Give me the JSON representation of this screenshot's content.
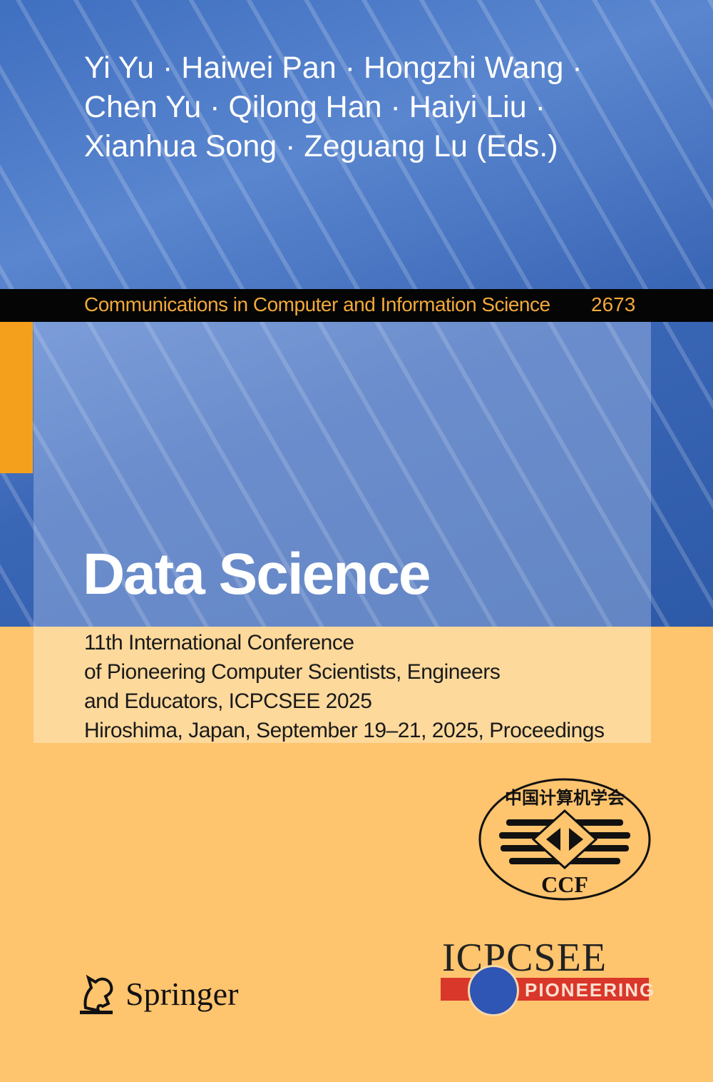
{
  "authors": {
    "lines": [
      "Yi Yu · Haiwei Pan · Hongzhi Wang ·",
      "Chen Yu · Qilong Han · Haiyi Liu ·",
      "Xianhua Song · Zeguang Lu (Eds.)"
    ]
  },
  "series": {
    "name": "Communications in Computer and Information Science",
    "volume": "2673"
  },
  "title": "Data Science",
  "subtitle": [
    "11th International Conference",
    "of Pioneering Computer Scientists, Engineers",
    "and Educators, ICPCSEE 2025",
    "Hiroshima, Japan, September 19–21, 2025, Proceedings"
  ],
  "publisher": "Springer",
  "logos": {
    "ccf_chinese": "中国计算机学会",
    "ccf": "CCF",
    "icpcsee": "ICPCSEE",
    "pioneering": "PIONEERING"
  },
  "colors": {
    "blue": "#3f6fc0",
    "orange": "#fec46e",
    "accent": "#f5a01c",
    "series_text": "#f2a93a"
  }
}
